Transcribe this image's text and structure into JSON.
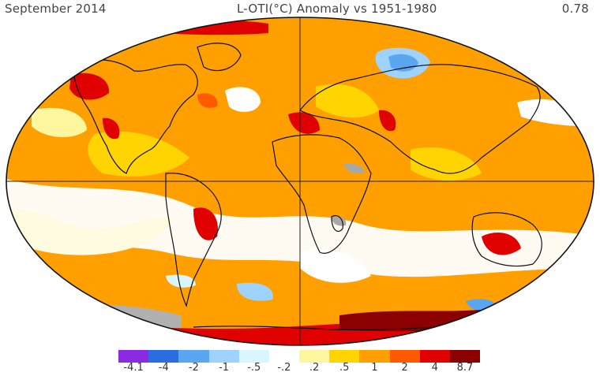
{
  "header": {
    "date": "September 2014",
    "title": "L-OTI(°C) Anomaly vs 1951-1980",
    "global_mean": "0.78"
  },
  "legend": {
    "colors": [
      "#8a2be2",
      "#2a6de0",
      "#5aa6f0",
      "#9fd3ff",
      "#d8f6ff",
      "#ffffff",
      "#fff7a0",
      "#ffd400",
      "#ffa000",
      "#ff5a00",
      "#e00000",
      "#8b0000"
    ],
    "labels": [
      "-4.1",
      "-4",
      "-2",
      "-1",
      "-.5",
      "-.2",
      ".2",
      ".5",
      "1",
      "2",
      "4",
      "8.7"
    ]
  }
}
